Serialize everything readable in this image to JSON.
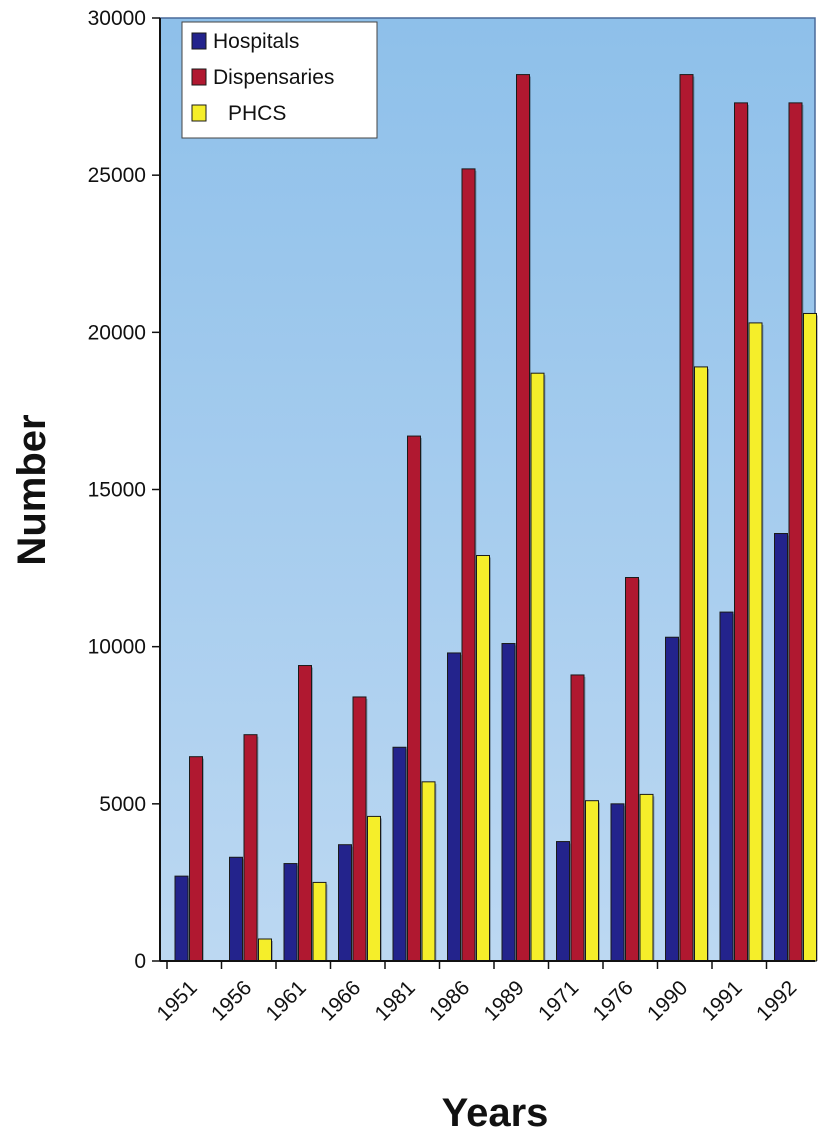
{
  "chart_data": {
    "type": "bar",
    "title": "",
    "xlabel": "Years",
    "ylabel": "Number",
    "ylim": [
      0,
      30000
    ],
    "yticks": [
      "0",
      "5000",
      "10000",
      "15000",
      "20000",
      "25000",
      "30000"
    ],
    "grid": false,
    "legend_position": "top-left",
    "categories": [
      "1951",
      "1956",
      "1961",
      "1966",
      "1981",
      "1986",
      "1989",
      "1971",
      "1976",
      "1990",
      "1991",
      "1992"
    ],
    "series": [
      {
        "name": "Hospitals",
        "color": "#23238c",
        "values": [
          2700,
          3300,
          3100,
          3700,
          6800,
          9800,
          10100,
          3800,
          5000,
          10300,
          11100,
          13600
        ]
      },
      {
        "name": "Dispensaries",
        "color": "#b01830",
        "values": [
          6500,
          7200,
          9400,
          8400,
          16700,
          25200,
          28200,
          9100,
          12200,
          28200,
          27300,
          27300
        ]
      },
      {
        "name": "PHCS",
        "color": "#f5ee2a",
        "values": [
          0,
          700,
          2500,
          4600,
          5700,
          12900,
          18700,
          5100,
          5300,
          18900,
          20300,
          20600
        ]
      }
    ]
  }
}
